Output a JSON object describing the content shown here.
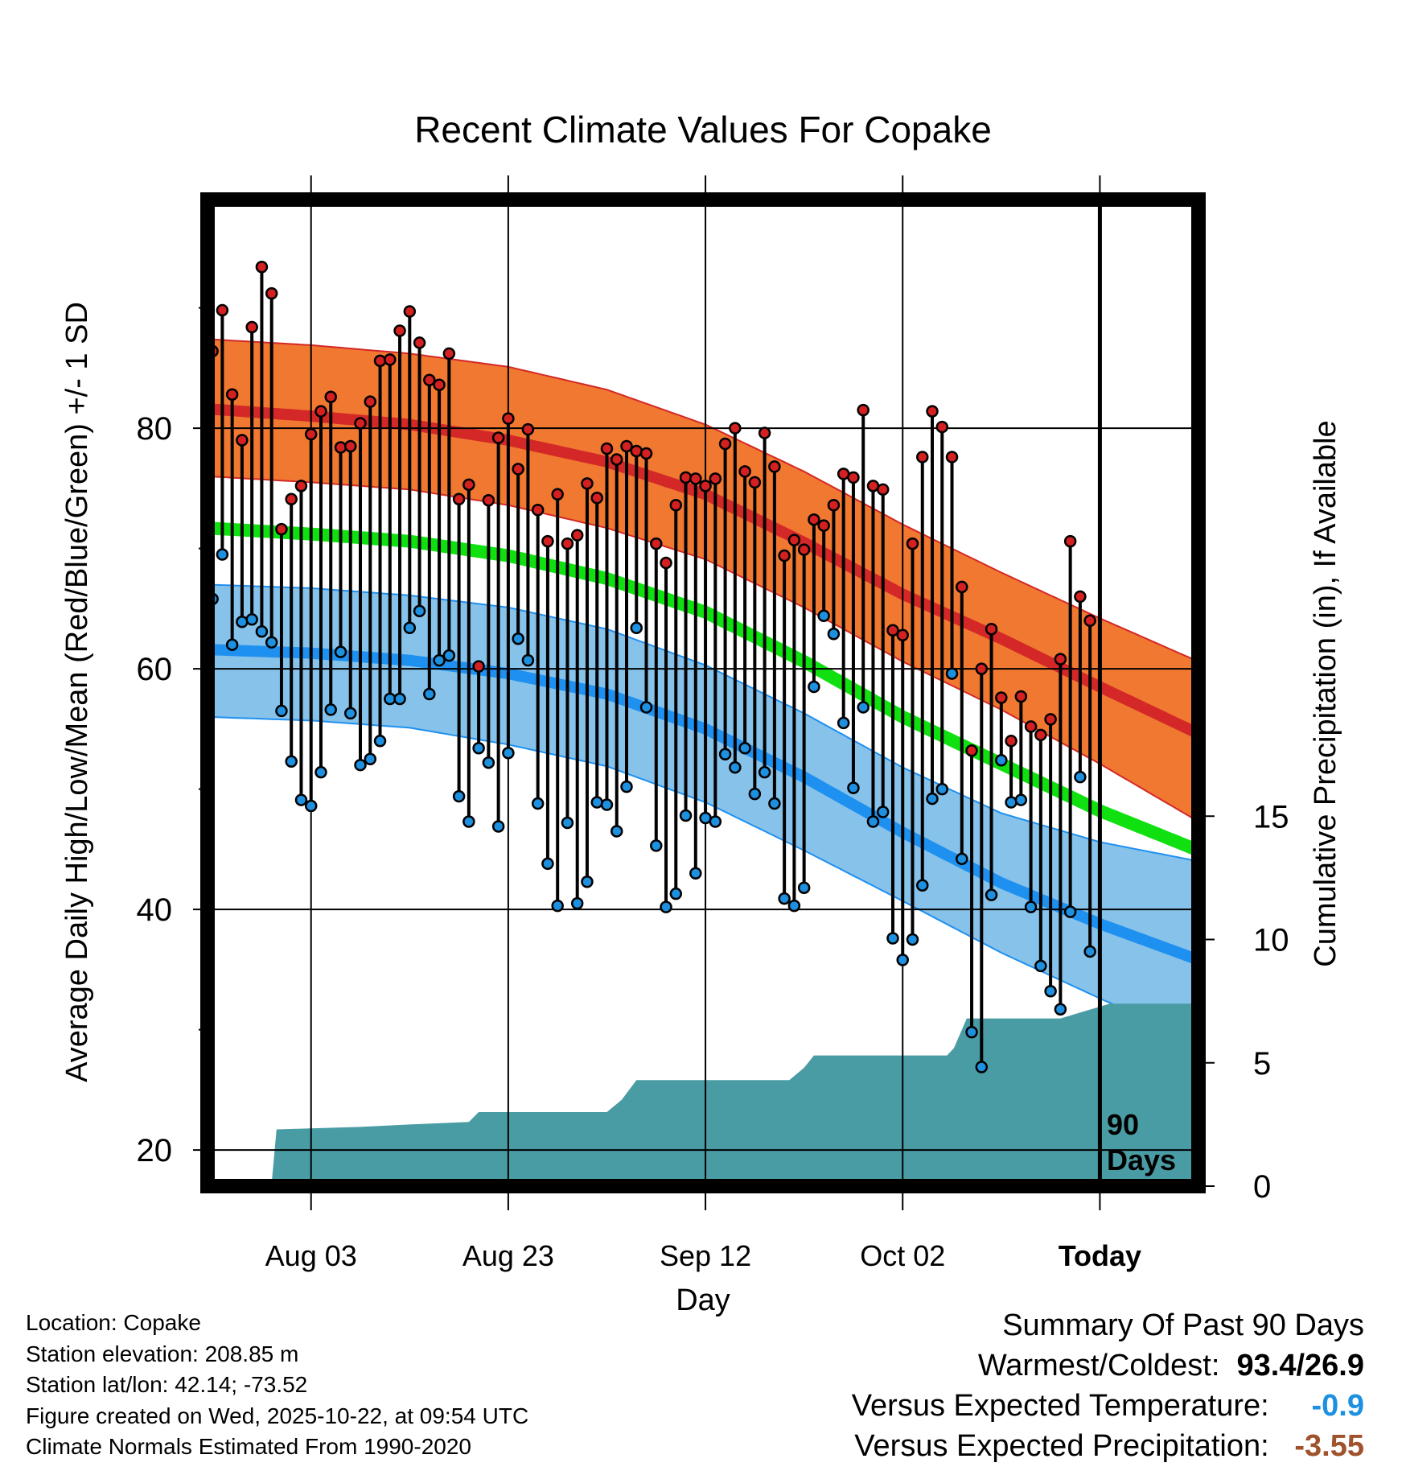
{
  "chart_data": {
    "type": "line",
    "title": "Recent Climate Values For Copake",
    "xlabel": "Day",
    "ylabel": "Average Daily High/Low/Mean (Red/Blue/Green) +/- 1 SD",
    "y2label": "Cumulative Precipitation (in), If Available",
    "xlim": [
      -10.5,
      90
    ],
    "ylim": [
      17,
      99
    ],
    "y2lim": [
      0,
      40
    ],
    "x_ticks": [
      {
        "day": 0,
        "label": "Aug 03"
      },
      {
        "day": 20,
        "label": "Aug 23"
      },
      {
        "day": 40,
        "label": "Sep 12"
      },
      {
        "day": 60,
        "label": "Oct 02"
      },
      {
        "day": 80,
        "label": "Today"
      }
    ],
    "y_ticks": [
      20,
      40,
      60,
      80
    ],
    "y2_ticks": [
      0,
      5,
      10,
      15
    ],
    "today_marker": {
      "day": 80,
      "label_line1": "90",
      "label_line2": "Days"
    },
    "normals": {
      "days": [
        -10.5,
        0,
        10,
        20,
        30,
        40,
        50,
        60,
        70,
        80,
        90
      ],
      "high_mean": [
        81.6,
        81.0,
        80.3,
        79.0,
        77.2,
        74.5,
        70.5,
        66.2,
        62.5,
        58.5,
        54.6
      ],
      "high_upper": [
        87.4,
        86.9,
        86.2,
        85.1,
        83.2,
        80.3,
        76.4,
        72.0,
        68.0,
        64.2,
        60.6
      ],
      "high_lower": [
        76.0,
        75.5,
        74.9,
        73.6,
        71.7,
        69.1,
        65.1,
        60.6,
        56.6,
        52.1,
        47.3
      ],
      "mean_normal": [
        71.7,
        71.2,
        70.6,
        69.4,
        67.5,
        64.7,
        60.6,
        56.0,
        52.1,
        48.2,
        44.9
      ],
      "low_mean": [
        61.6,
        61.3,
        60.7,
        59.6,
        57.9,
        55.0,
        51.0,
        46.4,
        42.2,
        38.8,
        35.8
      ],
      "low_upper": [
        67.0,
        66.7,
        66.1,
        65.1,
        63.3,
        60.3,
        56.3,
        51.8,
        48.0,
        45.6,
        44.0
      ],
      "low_lower": [
        56.0,
        55.7,
        55.1,
        53.7,
        51.9,
        48.9,
        44.9,
        40.7,
        36.4,
        32.6,
        29.0
      ]
    },
    "series": [
      {
        "name": "High",
        "color": "#d42020",
        "values": [
          86.4,
          89.8,
          82.8,
          79.0,
          88.4,
          93.4,
          91.2,
          71.6,
          74.1,
          75.2,
          79.5,
          81.4,
          82.6,
          78.4,
          78.5,
          80.4,
          82.2,
          85.6,
          85.7,
          88.1,
          89.7,
          87.1,
          84.0,
          83.6,
          86.2,
          74.1,
          75.3,
          60.2,
          74.0,
          79.2,
          80.8,
          76.6,
          79.9,
          73.2,
          70.6,
          74.5,
          70.4,
          71.1,
          75.4,
          74.2,
          78.3,
          77.4,
          78.5,
          78.1,
          77.9,
          70.4,
          68.8,
          73.6,
          75.9,
          75.8,
          75.2,
          75.8,
          78.7,
          80.0,
          76.4,
          75.5,
          79.6,
          76.8,
          69.4,
          70.7,
          69.9,
          72.4,
          71.9,
          73.6,
          76.2,
          75.9,
          81.5,
          75.2,
          74.9,
          63.2,
          62.8,
          70.4,
          77.6,
          81.4,
          80.1,
          77.6,
          66.8,
          53.2,
          60.0,
          63.3,
          57.6,
          54.0,
          57.7,
          55.2,
          54.5,
          55.8,
          60.8,
          70.6,
          66.0,
          64.0
        ]
      },
      {
        "name": "Low",
        "color": "#1e90e0",
        "values": [
          65.8,
          69.5,
          62.0,
          63.9,
          64.1,
          63.1,
          62.2,
          56.5,
          52.3,
          49.1,
          48.6,
          51.4,
          56.6,
          61.4,
          56.3,
          52.0,
          52.5,
          54.0,
          57.5,
          57.5,
          63.4,
          64.8,
          57.9,
          60.7,
          61.1,
          49.4,
          47.3,
          53.4,
          52.2,
          46.9,
          53.0,
          62.5,
          60.7,
          48.8,
          43.8,
          40.3,
          47.2,
          40.5,
          42.3,
          48.9,
          48.7,
          46.5,
          50.2,
          63.4,
          56.8,
          45.3,
          40.2,
          41.3,
          47.8,
          43.0,
          47.6,
          47.3,
          52.9,
          51.8,
          53.4,
          49.6,
          51.4,
          48.8,
          40.9,
          40.3,
          41.8,
          58.5,
          64.4,
          62.9,
          55.5,
          50.1,
          56.8,
          47.3,
          48.1,
          37.6,
          35.8,
          37.5,
          42.0,
          49.2,
          50.0,
          59.6,
          44.2,
          29.8,
          26.9,
          41.2,
          52.4,
          48.9,
          49.1,
          40.2,
          35.3,
          33.2,
          31.7,
          39.8,
          51.0,
          36.5
        ]
      }
    ],
    "precip_cumulative": {
      "days": [
        -10.5,
        -4.0,
        -3.5,
        5.0,
        10.0,
        16.0,
        17.0,
        30.0,
        31.5,
        33.0,
        48.5,
        50.0,
        51.0,
        64.5,
        65.2,
        66.5,
        67.0,
        76.0,
        81.0,
        90.0
      ],
      "values": [
        0.1,
        0.1,
        2.3,
        2.4,
        2.5,
        2.6,
        3.0,
        3.0,
        3.5,
        4.3,
        4.3,
        4.8,
        5.3,
        5.3,
        5.6,
        6.8,
        6.8,
        6.8,
        7.4,
        7.4
      ]
    }
  },
  "meta": {
    "location": "Location: Copake",
    "elevation": "Station elevation: 208.85 m",
    "latlon": "Station lat/lon: 42.14; -73.52",
    "created": "Figure created on Wed, 2025-10-22, at 09:54 UTC",
    "normals": "Climate Normals Estimated From 1990-2020"
  },
  "summary": {
    "title": "Summary Of Past 90 Days",
    "warmest_label": "Warmest/Coldest:",
    "warmest_value": "93.4/26.9",
    "temp_label": "Versus Expected Temperature:",
    "temp_value": "-0.9",
    "temp_color": "#1e90e0",
    "precip_label": "Versus Expected Precipitation:",
    "precip_value": "-3.55",
    "precip_color": "#a0522d"
  },
  "colors": {
    "high_band": "#f07830",
    "high_line": "#d42828",
    "mean_line": "#10e010",
    "low_band": "#86c2ea",
    "low_line": "#1e90f0",
    "precip_fill": "#4a9ca4"
  }
}
